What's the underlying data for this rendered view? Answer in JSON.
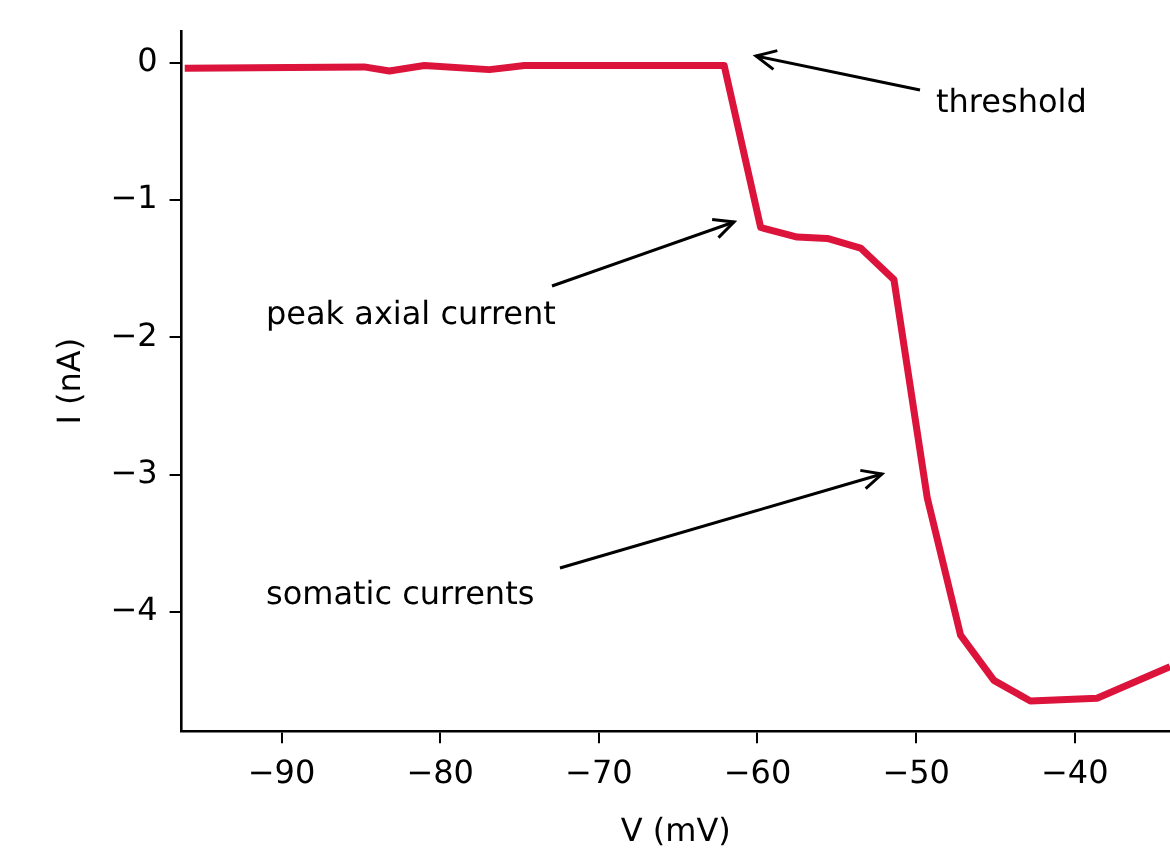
{
  "chart_data": {
    "type": "line",
    "xlabel": "V (mV)",
    "ylabel": "I (nA)",
    "x": [
      -96.1,
      -84.8,
      -83.2,
      -81,
      -76.9,
      -74.7,
      -62.1,
      -59.8,
      -57.5,
      -55.6,
      -53.5,
      -51.4,
      -49.3,
      -47.2,
      -45.1,
      -42.8,
      -38.6,
      -34
    ],
    "series": [
      {
        "color": "#dc143c",
        "values": [
          -0.04,
          -0.03,
          -0.06,
          -0.02,
          -0.05,
          -0.02,
          -0.02,
          -1.2,
          -1.27,
          -1.28,
          -1.35,
          -1.58,
          -3.17,
          -4.17,
          -4.5,
          -4.65,
          -4.63,
          -4.4
        ]
      }
    ],
    "xlim": [
      -96.3,
      -34
    ],
    "ylim": [
      -4.87,
      0.23
    ],
    "xticks": [
      {
        "value": -90,
        "label": "−90"
      },
      {
        "value": -80,
        "label": "−80"
      },
      {
        "value": -70,
        "label": "−70"
      },
      {
        "value": -60,
        "label": "−60"
      },
      {
        "value": -50,
        "label": "−50"
      },
      {
        "value": -40,
        "label": "−40"
      }
    ],
    "yticks": [
      {
        "value": -4,
        "label": "−4"
      },
      {
        "value": -3,
        "label": "−3"
      },
      {
        "value": -2,
        "label": "−2"
      },
      {
        "value": -1,
        "label": "−1"
      },
      0
    ],
    "annotations": [
      "threshold",
      "peak axial current",
      "somatic currents"
    ],
    "grid": false,
    "legend": false,
    "marker": "none",
    "line_style": "solid"
  }
}
